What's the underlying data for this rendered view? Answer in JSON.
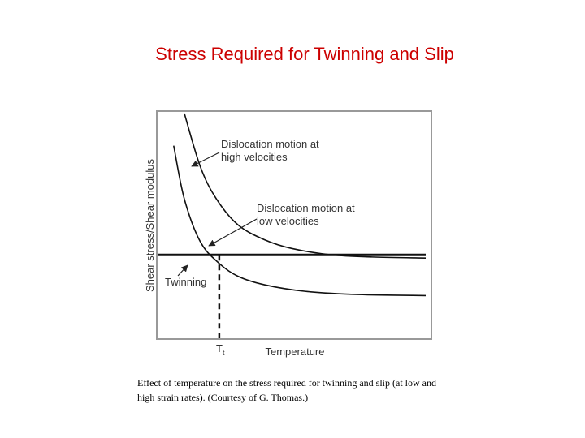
{
  "slide": {
    "title": "Stress Required for Twinning and Slip",
    "caption": "Effect of temperature on the stress required for twinning and slip (at low and high strain rates). (Courtesy of G. Thomas.)",
    "title_color": "#cc0000"
  },
  "chart_data": {
    "type": "line",
    "title": "",
    "xlabel": "Temperature",
    "ylabel": "Shear stress/Shear modulus",
    "x_tick_labels": [
      "T_t"
    ],
    "xlim": [
      0,
      1
    ],
    "ylim": [
      0,
      1
    ],
    "grid": false,
    "legend": "none",
    "series": [
      {
        "name": "Dislocation motion at high velocities",
        "x": [
          0.1,
          0.16,
          0.22,
          0.3,
          0.4,
          0.5,
          0.65,
          0.8,
          1.0
        ],
        "y": [
          1.0,
          0.75,
          0.6,
          0.48,
          0.41,
          0.37,
          0.34,
          0.33,
          0.325
        ]
      },
      {
        "name": "Dislocation motion at low velocities",
        "x": [
          0.06,
          0.1,
          0.16,
          0.23,
          0.3,
          0.4,
          0.55,
          0.75,
          1.0
        ],
        "y": [
          0.85,
          0.6,
          0.4,
          0.3,
          0.24,
          0.2,
          0.17,
          0.155,
          0.15
        ]
      },
      {
        "name": "Twinning",
        "x": [
          0.0,
          1.0
        ],
        "y": [
          0.34,
          0.34
        ]
      }
    ],
    "annotations": [
      {
        "text_line1": "Dislocation motion at",
        "text_line2": "high velocities"
      },
      {
        "text_line1": "Dislocation motion at",
        "text_line2": "low velocities"
      },
      {
        "text": "Twinning"
      }
    ],
    "marker": {
      "label_main": "T",
      "label_sub": "t",
      "x": 0.23
    }
  }
}
